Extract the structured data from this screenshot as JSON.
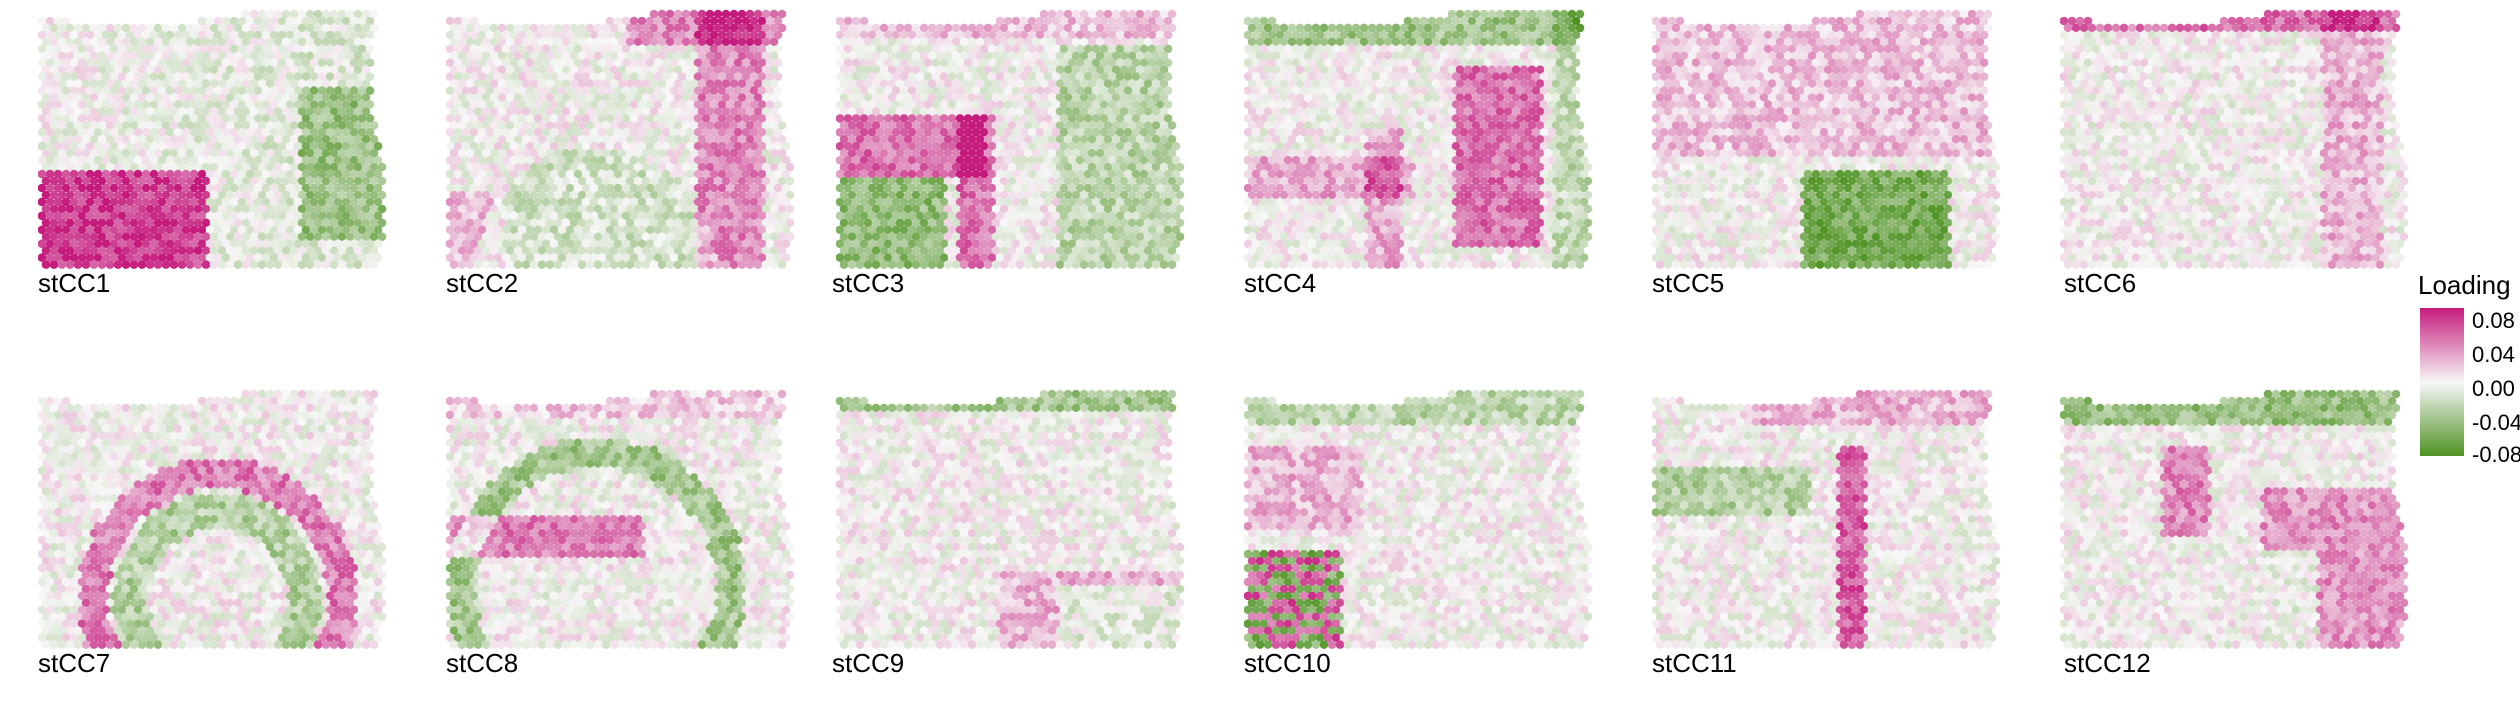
{
  "panels": [
    {
      "label": "stCC1"
    },
    {
      "label": "stCC2"
    },
    {
      "label": "stCC3"
    },
    {
      "label": "stCC4"
    },
    {
      "label": "stCC5"
    },
    {
      "label": "stCC6"
    },
    {
      "label": "stCC7"
    },
    {
      "label": "stCC8"
    },
    {
      "label": "stCC9"
    },
    {
      "label": "stCC10"
    },
    {
      "label": "stCC11"
    },
    {
      "label": "stCC12"
    }
  ],
  "legend": {
    "title": "Loading",
    "ticks": [
      "0.08",
      "0.04",
      "0.00",
      "-0.04",
      "-0.08"
    ],
    "colors": {
      "high": "#c51b7d",
      "mid": "#f7f7f7",
      "low": "#4d9221"
    }
  }
}
